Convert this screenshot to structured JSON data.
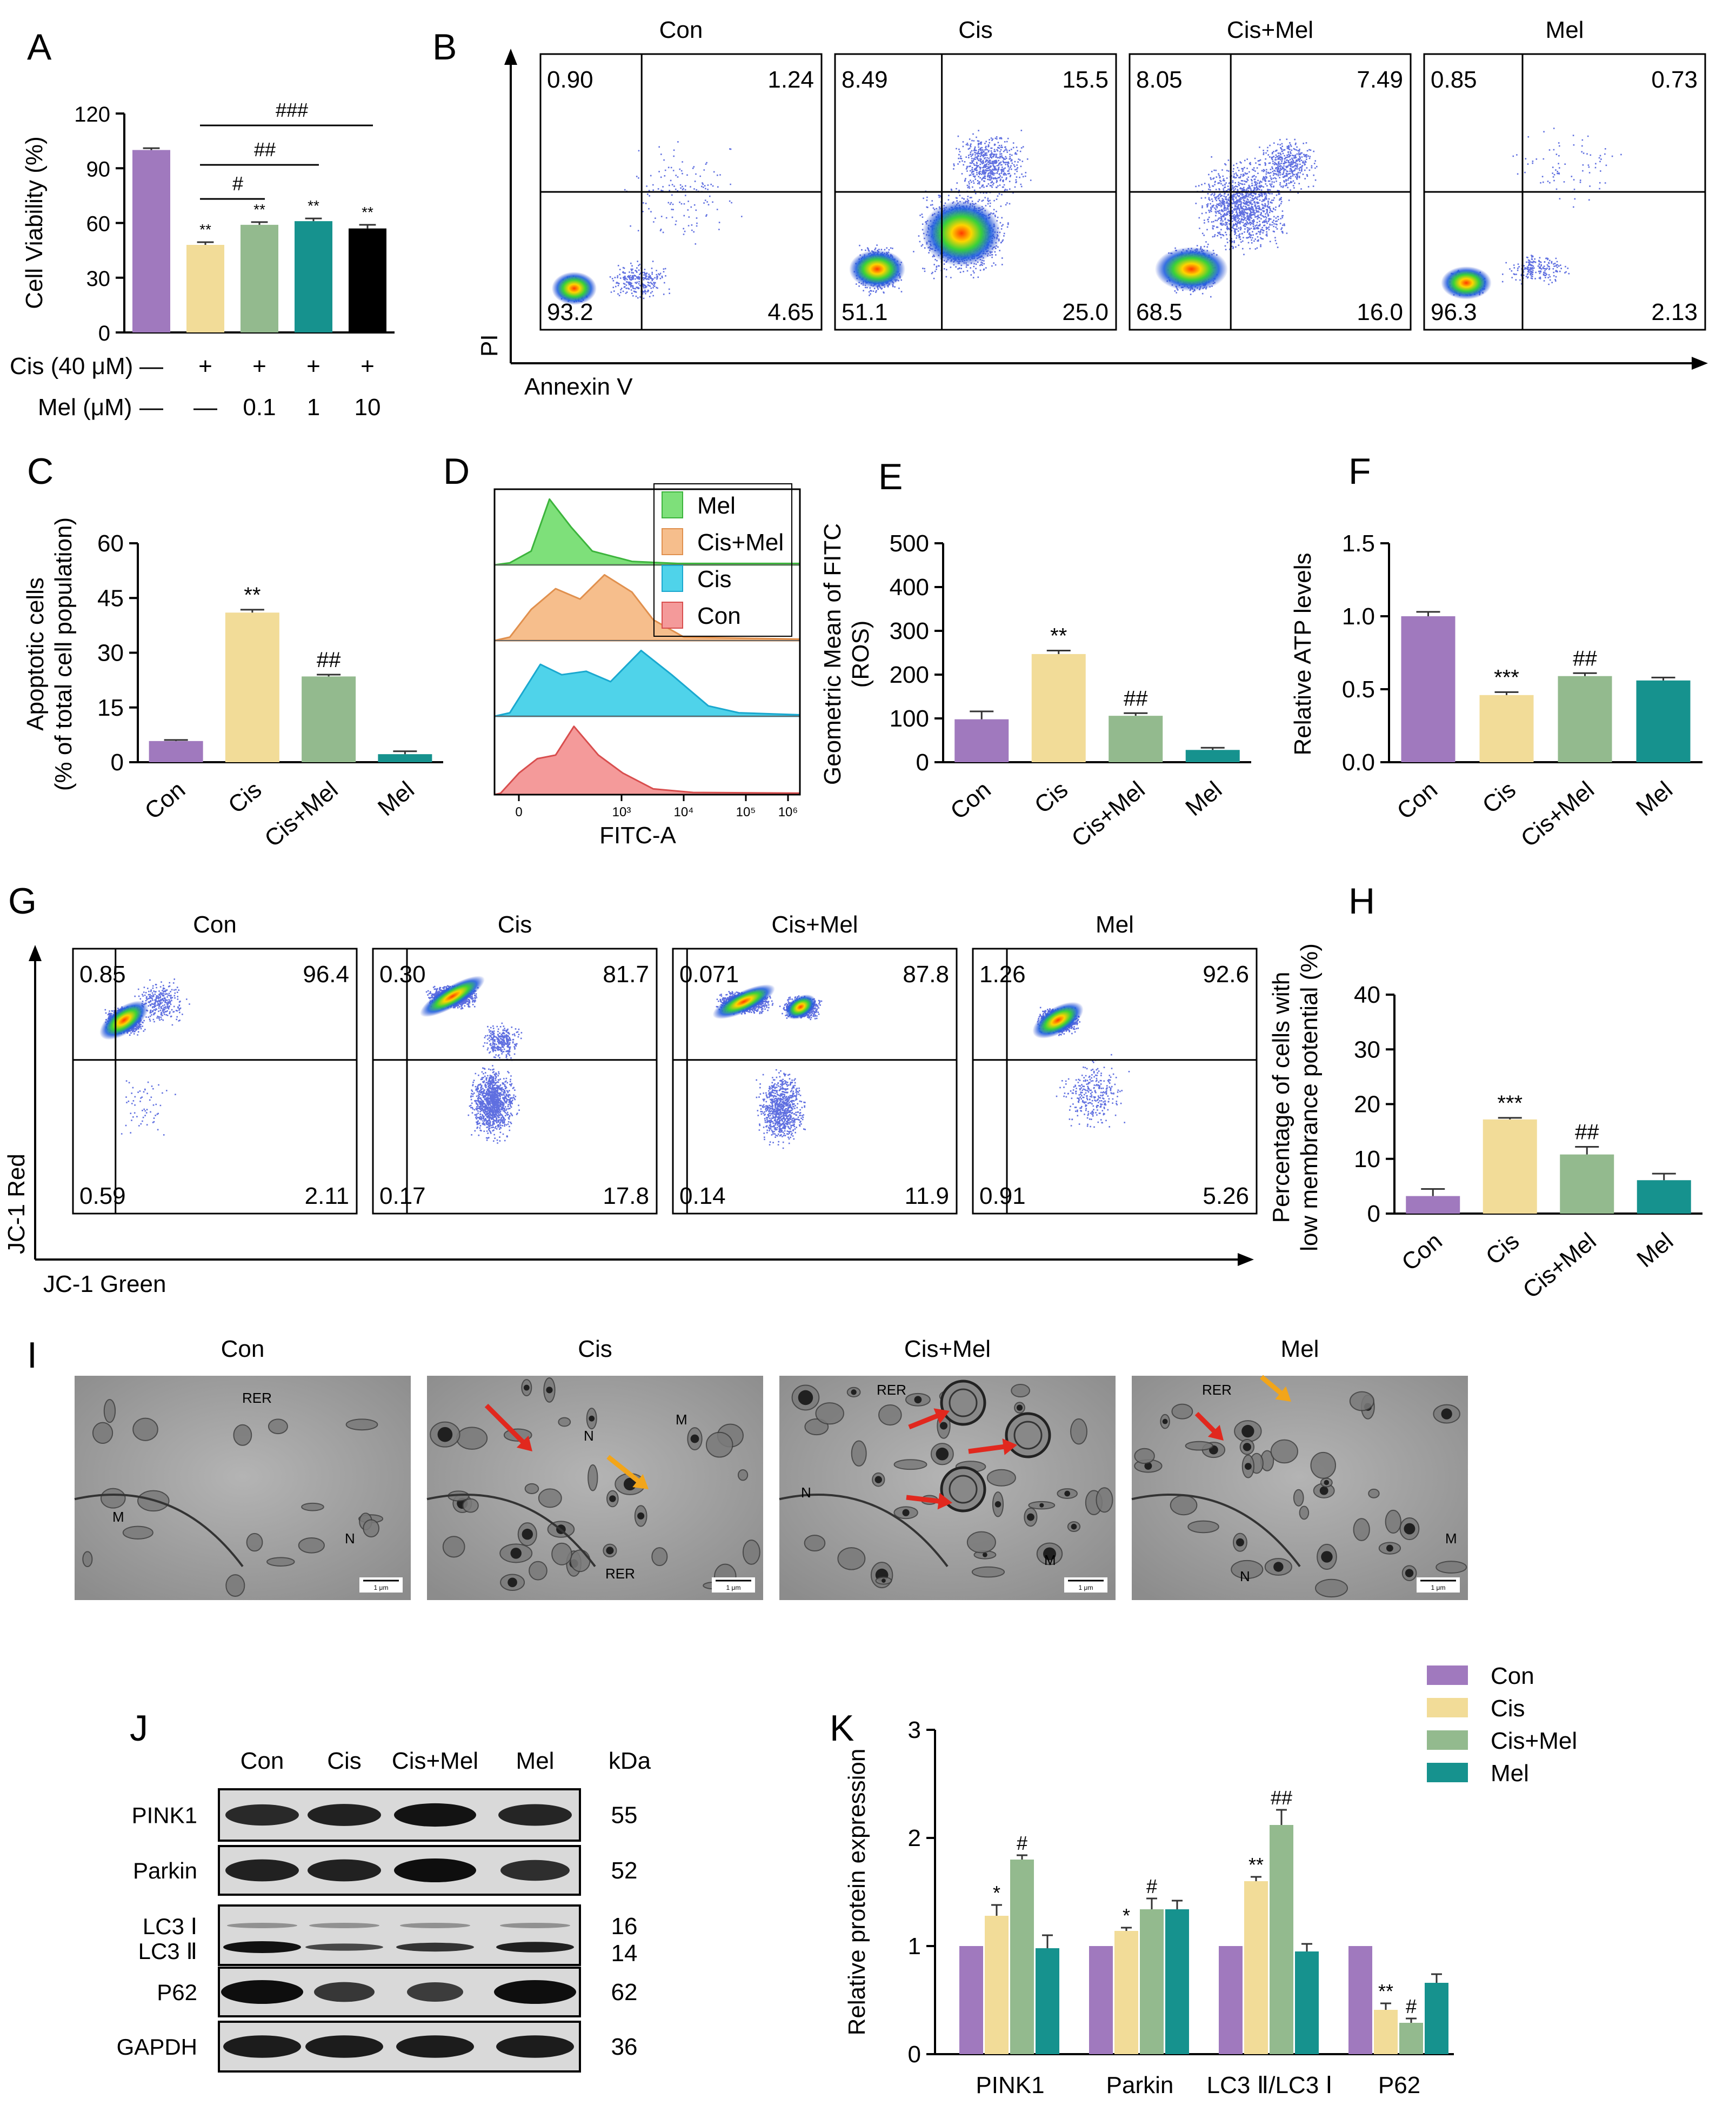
{
  "colors": {
    "con": "#a079be",
    "cis": "#f2dc98",
    "cismel": "#93ba8e",
    "mel": "#16928e"
  },
  "panels": [
    "A",
    "B",
    "C",
    "D",
    "E",
    "F",
    "G",
    "H",
    "I",
    "J",
    "K"
  ],
  "chart_data": [
    {
      "id": "A",
      "type": "bar",
      "ylabel": "Cell Viability (%)",
      "ylim": [
        0,
        120
      ],
      "yticks": [
        "0",
        "30",
        "60",
        "90",
        "120"
      ],
      "values": [
        100,
        48,
        59,
        61,
        57
      ],
      "errors": [
        1,
        1.5,
        1.5,
        1.5,
        2
      ],
      "stars": [
        "",
        "**",
        "**",
        "**",
        "**"
      ],
      "sig_lines": [
        {
          "label": "#",
          "from": 1,
          "to": 2
        },
        {
          "label": "##",
          "from": 1,
          "to": 3
        },
        {
          "label": "###",
          "from": 1,
          "to": 4
        }
      ],
      "cis_label": "Cis (40 μM)",
      "cis_values": [
        "—",
        "+",
        "+",
        "+",
        "+"
      ],
      "mel_label": "Mel (μM)",
      "mel_values": [
        "—",
        "—",
        "0.1",
        "1",
        "10"
      ]
    },
    {
      "id": "C",
      "type": "bar",
      "ylabel_1": "Apoptotic cells",
      "ylabel_2": "(% of total cell population)",
      "ylim": [
        0,
        60
      ],
      "yticks": [
        "0",
        "15",
        "30",
        "45",
        "60"
      ],
      "categories": [
        "Con",
        "Cis",
        "Cis+Mel",
        "Mel"
      ],
      "values": [
        5.8,
        41,
        23.5,
        2.2
      ],
      "errors": [
        0.3,
        0.8,
        0.5,
        0.8
      ],
      "stars": [
        "",
        "**",
        "##",
        ""
      ]
    },
    {
      "id": "E",
      "type": "bar",
      "ylabel_1": "Geometric Mean of FITC",
      "ylabel_2": "(ROS)",
      "ylim": [
        0,
        500
      ],
      "yticks": [
        "0",
        "100",
        "200",
        "300",
        "400",
        "500"
      ],
      "categories": [
        "Con",
        "Cis",
        "Cis+Mel",
        "Mel"
      ],
      "values": [
        98,
        247,
        106,
        28
      ],
      "errors": [
        18,
        8,
        6,
        5
      ],
      "stars": [
        "",
        "**",
        "##",
        ""
      ]
    },
    {
      "id": "F",
      "type": "bar",
      "ylabel": "Relative ATP levels",
      "ylim": [
        0,
        1.5
      ],
      "yticks": [
        "0.0",
        "0.5",
        "1.0",
        "1.5"
      ],
      "categories": [
        "Con",
        "Cis",
        "Cis+Mel",
        "Mel"
      ],
      "values": [
        1.0,
        0.46,
        0.59,
        0.56
      ],
      "errors": [
        0.03,
        0.02,
        0.02,
        0.02
      ],
      "stars": [
        "",
        "***",
        "##",
        ""
      ]
    },
    {
      "id": "H",
      "type": "bar",
      "ylabel_1": "Percentage of cells with",
      "ylabel_2": "low membrance potential (%)",
      "ylim": [
        0,
        40
      ],
      "yticks": [
        "0",
        "10",
        "20",
        "30",
        "40"
      ],
      "categories": [
        "Con",
        "Cis",
        "Cis+Mel",
        "Mel"
      ],
      "values": [
        3.2,
        17.2,
        10.8,
        6.1
      ],
      "errors": [
        1.3,
        0.3,
        1.4,
        1.2
      ],
      "stars": [
        "",
        "***",
        "##",
        ""
      ]
    },
    {
      "id": "K",
      "type": "bar",
      "ylabel": "Relative protein expression",
      "ylim": [
        0,
        3
      ],
      "yticks": [
        "0",
        "1",
        "2",
        "3"
      ],
      "categories": [
        "PINK1",
        "Parkin",
        "LC3 Ⅱ/LC3 Ⅰ",
        "P62"
      ],
      "series": [
        {
          "name": "Con",
          "values": [
            1,
            1,
            1,
            1
          ],
          "errors": [
            0,
            0,
            0,
            0
          ],
          "stars": [
            "",
            "",
            "",
            ""
          ]
        },
        {
          "name": "Cis",
          "values": [
            1.28,
            1.14,
            1.6,
            0.41
          ],
          "errors": [
            0.1,
            0.03,
            0.04,
            0.06
          ],
          "stars": [
            "*",
            "*",
            "**",
            "**"
          ]
        },
        {
          "name": "Cis+Mel",
          "values": [
            1.8,
            1.34,
            2.12,
            0.29
          ],
          "errors": [
            0.04,
            0.1,
            0.14,
            0.04
          ],
          "stars": [
            "#",
            "#",
            "##",
            "#"
          ]
        },
        {
          "name": "Mel",
          "values": [
            0.98,
            1.34,
            0.95,
            0.66
          ],
          "errors": [
            0.12,
            0.08,
            0.07,
            0.08
          ],
          "stars": [
            "",
            "",
            "",
            ""
          ]
        }
      ]
    }
  ],
  "flow_B": {
    "xlabel": "Annexin V",
    "ylabel": "PI",
    "plots": [
      {
        "title": "Con",
        "ul": "0.90",
        "ur": "1.24",
        "ll": "93.2",
        "lr": "4.65"
      },
      {
        "title": "Cis",
        "ul": "8.49",
        "ur": "15.5",
        "ll": "51.1",
        "lr": "25.0"
      },
      {
        "title": "Cis+Mel",
        "ul": "8.05",
        "ur": "7.49",
        "ll": "68.5",
        "lr": "16.0"
      },
      {
        "title": "Mel",
        "ul": "0.85",
        "ur": "0.73",
        "ll": "96.3",
        "lr": "2.13"
      }
    ]
  },
  "hist_D": {
    "xlabel": "FITC-A",
    "legend": [
      "Mel",
      "Cis+Mel",
      "Cis",
      "Con"
    ],
    "ticks": [
      "0",
      "10³",
      "10⁴",
      "10⁵",
      "10⁶"
    ]
  },
  "flow_G": {
    "xlabel": "JC-1 Green",
    "ylabel": "JC-1 Red",
    "plots": [
      {
        "title": "Con",
        "ul": "0.85",
        "ur": "96.4",
        "ll": "0.59",
        "lr": "2.11"
      },
      {
        "title": "Cis",
        "ul": "0.30",
        "ur": "81.7",
        "ll": "0.17",
        "lr": "17.8"
      },
      {
        "title": "Cis+Mel",
        "ul": "0.071",
        "ur": "87.8",
        "ll": "0.14",
        "lr": "11.9"
      },
      {
        "title": "Mel",
        "ul": "1.26",
        "ur": "92.6",
        "ll": "0.91",
        "lr": "5.26"
      }
    ]
  },
  "tem_I": {
    "panels": [
      {
        "title": "Con",
        "labels": [
          "RER",
          "M",
          "N"
        ]
      },
      {
        "title": "Cis",
        "labels": [
          "N",
          "M",
          "RER"
        ]
      },
      {
        "title": "Cis+Mel",
        "labels": [
          "RER",
          "N",
          "M"
        ]
      },
      {
        "title": "Mel",
        "labels": [
          "RER",
          "M",
          "N"
        ]
      }
    ],
    "scale": "1 μm"
  },
  "blot_J": {
    "lanes": [
      "Con",
      "Cis",
      "Cis+Mel",
      "Mel"
    ],
    "kda_label": "kDa",
    "rows": [
      {
        "name": "PINK1",
        "kda": "55"
      },
      {
        "name": "Parkin",
        "kda": "52"
      },
      {
        "name": "LC3 Ⅰ",
        "name2": "LC3 Ⅱ",
        "kda": "16",
        "kda2": "14"
      },
      {
        "name": "P62",
        "kda": "62"
      },
      {
        "name": "GAPDH",
        "kda": "36"
      }
    ]
  }
}
